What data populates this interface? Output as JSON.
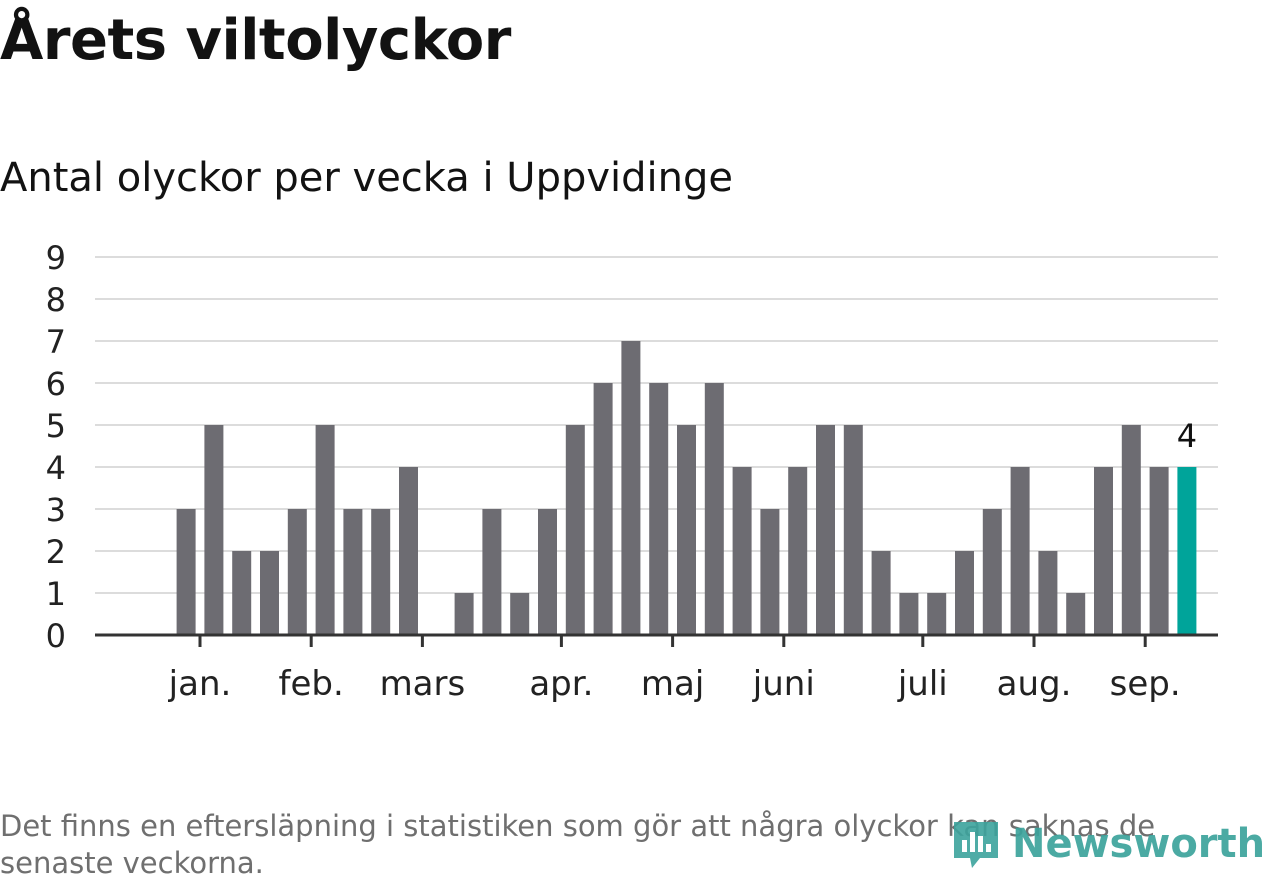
{
  "chart_data": {
    "type": "bar",
    "title": "Årets viltolyckor",
    "subtitle": "Antal olyckor per vecka i Uppvidinge",
    "ylim": [
      0,
      9
    ],
    "yticks": [
      0,
      1,
      2,
      3,
      4,
      5,
      6,
      7,
      8,
      9
    ],
    "grid": true,
    "values": [
      0,
      0,
      3,
      5,
      2,
      2,
      3,
      5,
      3,
      3,
      4,
      0,
      1,
      3,
      1,
      3,
      5,
      6,
      7,
      6,
      5,
      6,
      4,
      3,
      4,
      5,
      5,
      2,
      1,
      1,
      2,
      3,
      4,
      2,
      1,
      4,
      5,
      4,
      4
    ],
    "highlight_index": 38,
    "highlight_label": "4",
    "bar_color": "#6d6c72",
    "highlight_color": "#00a49a",
    "month_labels": [
      {
        "label": "jan.",
        "week": 2.5
      },
      {
        "label": "feb.",
        "week": 6.5
      },
      {
        "label": "mars",
        "week": 10.5
      },
      {
        "label": "apr.",
        "week": 15.5
      },
      {
        "label": "maj",
        "week": 19.5
      },
      {
        "label": "juni",
        "week": 23.5
      },
      {
        "label": "juli",
        "week": 28.5
      },
      {
        "label": "aug.",
        "week": 32.5
      },
      {
        "label": "sep.",
        "week": 36.5
      }
    ]
  },
  "footnote": "Det finns en eftersläpning i statistiken som gör att några olyckor kan saknas de senaste veckorna.",
  "brand": {
    "name": "Newsworthy",
    "color": "#3ca39c"
  }
}
